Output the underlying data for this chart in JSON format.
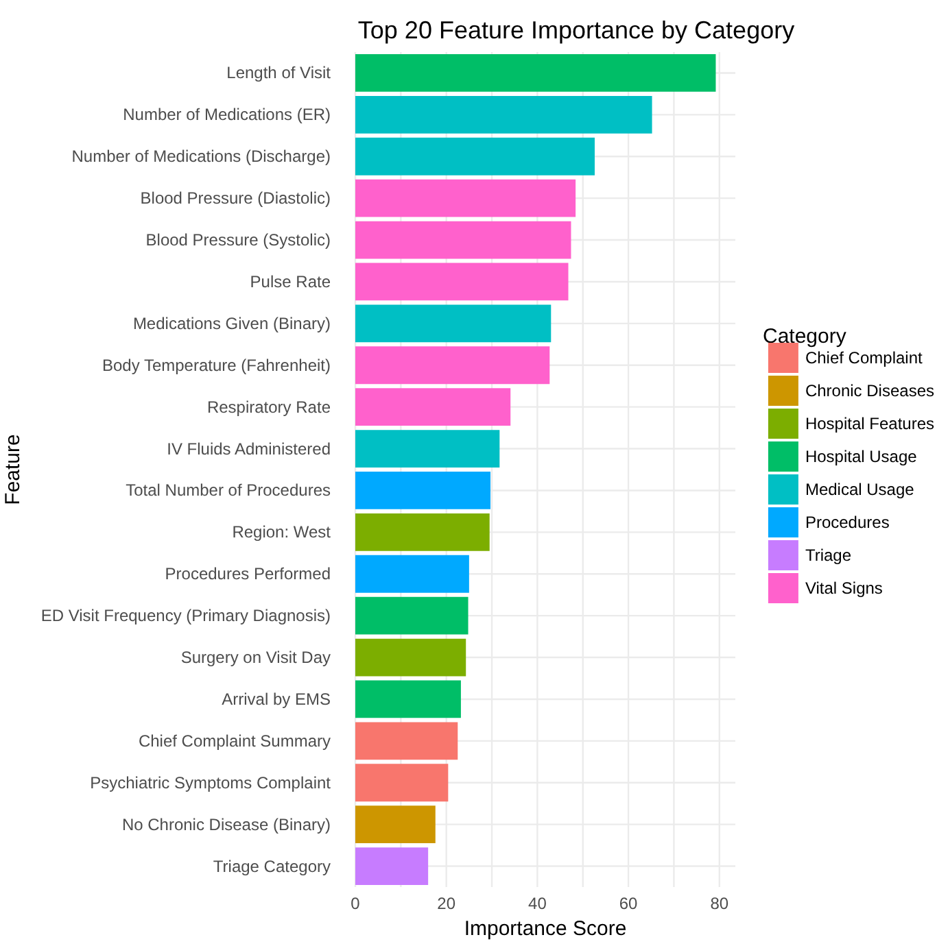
{
  "chart_data": {
    "type": "bar",
    "orientation": "horizontal",
    "title": "Top 20 Feature Importance by Category",
    "xlabel": "Importance Score",
    "ylabel": "Feature",
    "legend_title": "Category",
    "categories": [
      "Length of Visit",
      "Number of Medications (ER)",
      "Number of Medications (Discharge)",
      "Blood Pressure (Diastolic)",
      "Blood Pressure (Systolic)",
      "Pulse Rate",
      "Medications Given (Binary)",
      "Body Temperature (Fahrenheit)",
      "Respiratory Rate",
      "IV Fluids Administered",
      "Total Number of Procedures",
      "Region: West",
      "Procedures Performed",
      "ED Visit Frequency (Primary Diagnosis)",
      "Surgery on Visit Day",
      "Arrival by EMS",
      "Chief Complaint Summary",
      "Psychiatric Symptoms Complaint",
      "No Chronic Disease (Binary)",
      "Triage Category"
    ],
    "series": [
      {
        "name": "Chief Complaint",
        "color": "#f8766d",
        "values": [
          null,
          null,
          null,
          null,
          null,
          null,
          null,
          null,
          null,
          null,
          null,
          null,
          null,
          null,
          null,
          null,
          22.5,
          20.4,
          null,
          null
        ]
      },
      {
        "name": "Chronic Diseases",
        "color": "#cd9600",
        "values": [
          null,
          null,
          null,
          null,
          null,
          null,
          null,
          null,
          null,
          null,
          null,
          null,
          null,
          null,
          null,
          null,
          null,
          null,
          17.6,
          null
        ]
      },
      {
        "name": "Hospital Features",
        "color": "#7cae00",
        "values": [
          null,
          null,
          null,
          null,
          null,
          null,
          null,
          null,
          null,
          null,
          null,
          29.5,
          null,
          null,
          24.3,
          null,
          null,
          null,
          null,
          null
        ]
      },
      {
        "name": "Hospital Usage",
        "color": "#00be67",
        "values": [
          79.2,
          null,
          null,
          null,
          null,
          null,
          null,
          null,
          null,
          null,
          null,
          null,
          null,
          24.8,
          null,
          23.2,
          null,
          null,
          null,
          null
        ]
      },
      {
        "name": "Medical Usage",
        "color": "#00bfc4",
        "values": [
          null,
          65.2,
          52.6,
          null,
          null,
          null,
          43.0,
          null,
          null,
          31.7,
          null,
          null,
          null,
          null,
          null,
          null,
          null,
          null,
          null,
          null
        ]
      },
      {
        "name": "Procedures",
        "color": "#00a9ff",
        "values": [
          null,
          null,
          null,
          null,
          null,
          null,
          null,
          null,
          null,
          null,
          29.7,
          null,
          25.0,
          null,
          null,
          null,
          null,
          null,
          null,
          null
        ]
      },
      {
        "name": "Triage",
        "color": "#c77cff",
        "values": [
          null,
          null,
          null,
          null,
          null,
          null,
          null,
          null,
          null,
          null,
          null,
          null,
          null,
          null,
          null,
          null,
          null,
          null,
          null,
          16.0
        ]
      },
      {
        "name": "Vital Signs",
        "color": "#ff61cc",
        "values": [
          null,
          null,
          null,
          48.4,
          47.4,
          46.8,
          null,
          42.7,
          34.1,
          null,
          null,
          null,
          null,
          null,
          null,
          null,
          null,
          null,
          null,
          null
        ]
      }
    ],
    "xlim": [
      0,
      83.5
    ],
    "xticks": [
      0,
      {
        "value": 10,
        "label": null
      },
      20,
      {
        "value": 30,
        "label": null
      },
      40,
      {
        "value": 50,
        "label": null
      },
      60,
      {
        "value": 70,
        "label": null
      },
      80
    ],
    "grid": true,
    "legend": "right"
  }
}
